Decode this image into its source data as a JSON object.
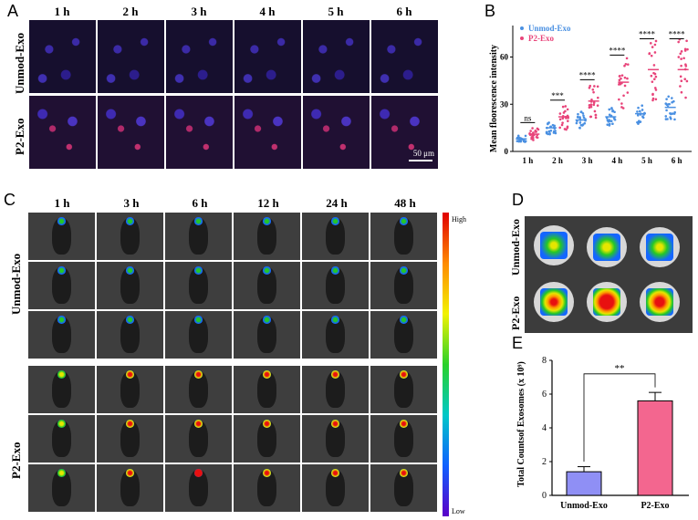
{
  "panels": {
    "a": "A",
    "b": "B",
    "c": "C",
    "d": "D",
    "e": "E"
  },
  "panel_a": {
    "time_labels": [
      "1 h",
      "2 h",
      "3 h",
      "4 h",
      "5 h",
      "6 h"
    ],
    "row_labels": [
      "Unmod-Exo",
      "P2-Exo"
    ],
    "scale_bar": "50 μm"
  },
  "panel_c": {
    "time_labels": [
      "1 h",
      "3 h",
      "6 h",
      "12 h",
      "24 h",
      "48 h"
    ],
    "row_labels": [
      "Unmod-Exo",
      "P2-Exo"
    ],
    "colorbar_high": "High",
    "colorbar_low": "Low"
  },
  "panel_d": {
    "row_labels": [
      "Unmod-Exo",
      "P2-Exo"
    ]
  },
  "chart_data": [
    {
      "type": "scatter",
      "ylabel": "Mean floorescence intensity",
      "categories": [
        "1 h",
        "2 h",
        "3 h",
        "4 h",
        "5 h",
        "6 h"
      ],
      "ylim": [
        0,
        80
      ],
      "yticks": [
        0,
        30,
        60
      ],
      "legend": [
        "Unmod-Exo",
        "P2-Exo"
      ],
      "legend_position": "top-left",
      "significance": [
        "ns",
        "***",
        "****",
        "****",
        "****",
        "****"
      ],
      "series": [
        {
          "name": "Unmod-Exo",
          "color": "#4a90e2",
          "means": [
            8,
            15,
            20,
            22,
            24,
            28
          ]
        },
        {
          "name": "P2-Exo",
          "color": "#e8447a",
          "means": [
            11,
            22,
            32,
            44,
            52,
            52
          ]
        }
      ]
    },
    {
      "type": "bar",
      "ylabel": "Total Countsof Exosomes (x 10⁹)",
      "categories": [
        "Unmod-Exo",
        "P2-Exo"
      ],
      "values": [
        1.4,
        5.6
      ],
      "errors": [
        0.3,
        0.5
      ],
      "ylim": [
        0,
        8
      ],
      "yticks": [
        0,
        2,
        4,
        6,
        8
      ],
      "colors": [
        "#8f8ff5",
        "#f3668f"
      ],
      "significance": "**"
    }
  ]
}
